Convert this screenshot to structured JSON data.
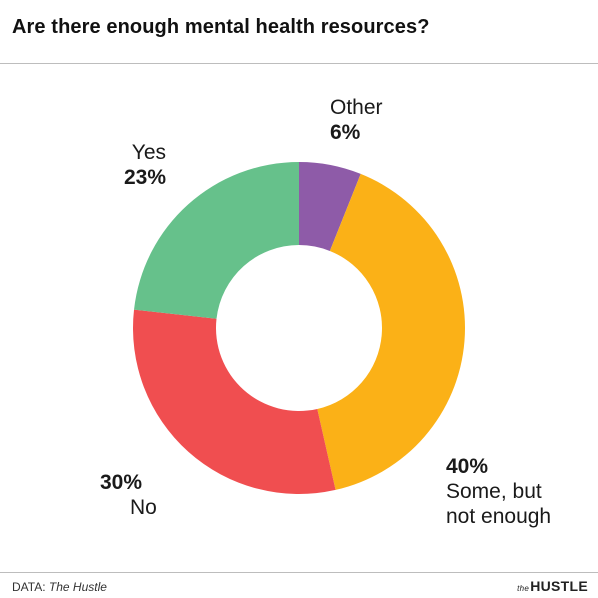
{
  "title": "Are there enough mental health resources?",
  "chart_data": {
    "type": "pie",
    "donut": true,
    "slices": [
      {
        "label": "Other",
        "value": 6,
        "display": "6%",
        "color": "#8e5ba8"
      },
      {
        "label": "Some, but not enough",
        "label_lines": [
          "Some, but",
          "not enough"
        ],
        "value": 40,
        "display": "40%",
        "color": "#fbb117"
      },
      {
        "label": "No",
        "value": 30,
        "display": "30%",
        "color": "#f04e50"
      },
      {
        "label": "Yes",
        "value": 23,
        "display": "23%",
        "color": "#66c18b"
      }
    ]
  },
  "footer": {
    "source_prefix": "DATA:",
    "source_name": "The Hustle",
    "brand_prefix": "the",
    "brand_name": "HUSTLE"
  }
}
